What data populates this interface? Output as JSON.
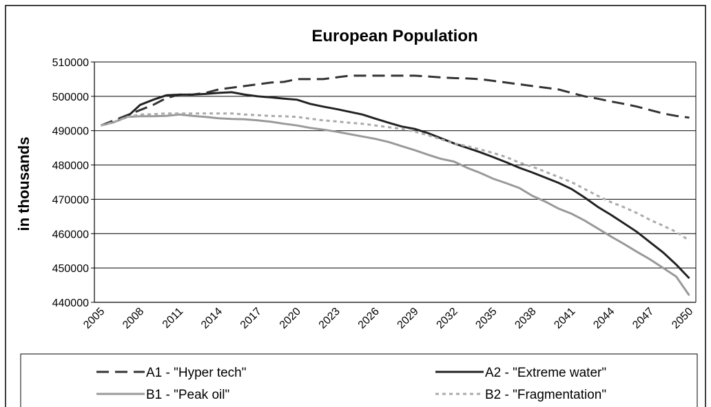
{
  "chart_data": {
    "type": "line",
    "title": "European Population",
    "y_label": "in thousands",
    "categories": [
      "2005",
      null,
      null,
      "2008",
      null,
      null,
      "2011",
      null,
      null,
      "2014",
      null,
      null,
      "2017",
      null,
      null,
      "2020",
      null,
      null,
      "2023",
      null,
      null,
      "2026",
      null,
      null,
      "2029",
      null,
      null,
      "2032",
      null,
      null,
      "2035",
      null,
      null,
      "2038",
      null,
      null,
      "2041",
      null,
      null,
      "2044",
      null,
      null,
      "2047",
      null,
      null,
      "2050"
    ],
    "ylim": [
      440000,
      510000
    ],
    "yticks": [
      440000,
      450000,
      460000,
      470000,
      480000,
      490000,
      500000,
      510000
    ],
    "grid": true,
    "legend": "bottom",
    "series": [
      {
        "name": "A1 - \"Hyper tech\"",
        "color": "#333333",
        "style": "dashed",
        "values": [
          491500,
          493000,
          494500,
          496000,
          497500,
          499500,
          500500,
          500500,
          501000,
          502000,
          502500,
          503000,
          503500,
          504000,
          504200,
          505000,
          505000,
          505000,
          505500,
          506000,
          506000,
          506000,
          506000,
          506000,
          506000,
          505800,
          505500,
          505300,
          505200,
          505000,
          504500,
          504000,
          503500,
          503000,
          502500,
          502000,
          501000,
          500000,
          499300,
          498500,
          497800,
          497000,
          496000,
          495000,
          494300,
          493800
        ]
      },
      {
        "name": "A2 - \"Extreme water\"",
        "color": "#222222",
        "style": "solid",
        "values": [
          491500,
          492500,
          494000,
          497500,
          499000,
          500300,
          500500,
          500500,
          500700,
          501000,
          501200,
          500500,
          500000,
          499700,
          499300,
          499000,
          497800,
          497000,
          496300,
          495500,
          494700,
          493500,
          492300,
          491200,
          490500,
          489300,
          487800,
          486300,
          485000,
          483700,
          482300,
          480800,
          479200,
          477800,
          476300,
          474800,
          473000,
          470500,
          467800,
          465500,
          463000,
          460500,
          457500,
          454500,
          451000,
          447000
        ]
      },
      {
        "name": "B1 - \"Peak oil\"",
        "color": "#999999",
        "style": "solid",
        "values": [
          491500,
          492500,
          494000,
          494200,
          494200,
          494300,
          494700,
          494300,
          494000,
          493600,
          493400,
          493300,
          493000,
          492600,
          492000,
          491500,
          490800,
          490300,
          489700,
          489000,
          488300,
          487600,
          486700,
          485500,
          484300,
          483000,
          481800,
          481000,
          479200,
          477700,
          476000,
          474700,
          473300,
          471000,
          469300,
          467300,
          465800,
          463800,
          461500,
          459200,
          457000,
          454700,
          452500,
          450000,
          447500,
          442000
        ]
      },
      {
        "name": "B2 - \"Fragmentation\"",
        "color": "#aaaaaa",
        "style": "dotted",
        "values": [
          491500,
          492500,
          494000,
          494700,
          494800,
          495000,
          495000,
          495000,
          495000,
          495000,
          495000,
          494700,
          494500,
          494300,
          494200,
          494000,
          493500,
          493000,
          492700,
          492300,
          492000,
          491500,
          491000,
          490500,
          489700,
          488700,
          487500,
          486300,
          485500,
          484500,
          483500,
          482300,
          480700,
          479500,
          478000,
          476500,
          475000,
          473000,
          471000,
          469200,
          467700,
          466000,
          464000,
          462300,
          460500,
          458000
        ]
      }
    ]
  }
}
